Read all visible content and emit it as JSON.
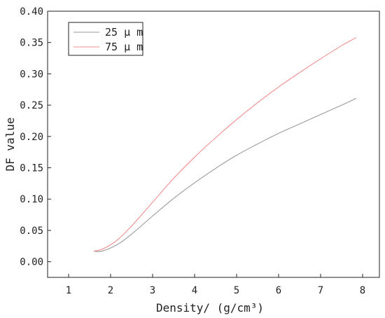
{
  "chart_data": {
    "type": "line",
    "title": "",
    "xlabel": "Density/ (g/cm³)",
    "ylabel": "DF value",
    "xlim": [
      0.5,
      8.4
    ],
    "ylim": [
      -0.025,
      0.4
    ],
    "xticks": [
      "1",
      "2",
      "3",
      "4",
      "5",
      "6",
      "7",
      "8"
    ],
    "yticks": [
      "0.00",
      "0.05",
      "0.10",
      "0.15",
      "0.20",
      "0.25",
      "0.30",
      "0.35",
      "0.40"
    ],
    "grid": false,
    "legend_position": "top-left",
    "series": [
      {
        "name": "25 μ m",
        "color": "#9a9a9a",
        "x": [
          1.6,
          1.7,
          1.8,
          2.0,
          2.2,
          2.5,
          3.0,
          3.5,
          4.0,
          4.5,
          5.0,
          5.5,
          6.0,
          6.5,
          7.0,
          7.5,
          7.85
        ],
        "y": [
          0.017,
          0.016,
          0.017,
          0.022,
          0.029,
          0.044,
          0.073,
          0.101,
          0.126,
          0.149,
          0.17,
          0.188,
          0.205,
          0.22,
          0.235,
          0.25,
          0.261
        ]
      },
      {
        "name": "75 μ m",
        "color": "#f08f8f",
        "x": [
          1.6,
          1.7,
          1.8,
          2.0,
          2.2,
          2.5,
          3.0,
          3.5,
          4.0,
          4.5,
          5.0,
          5.5,
          6.0,
          6.5,
          7.0,
          7.5,
          7.85
        ],
        "y": [
          0.017,
          0.018,
          0.02,
          0.027,
          0.037,
          0.057,
          0.095,
          0.133,
          0.167,
          0.198,
          0.227,
          0.254,
          0.279,
          0.302,
          0.324,
          0.345,
          0.358
        ]
      }
    ]
  }
}
